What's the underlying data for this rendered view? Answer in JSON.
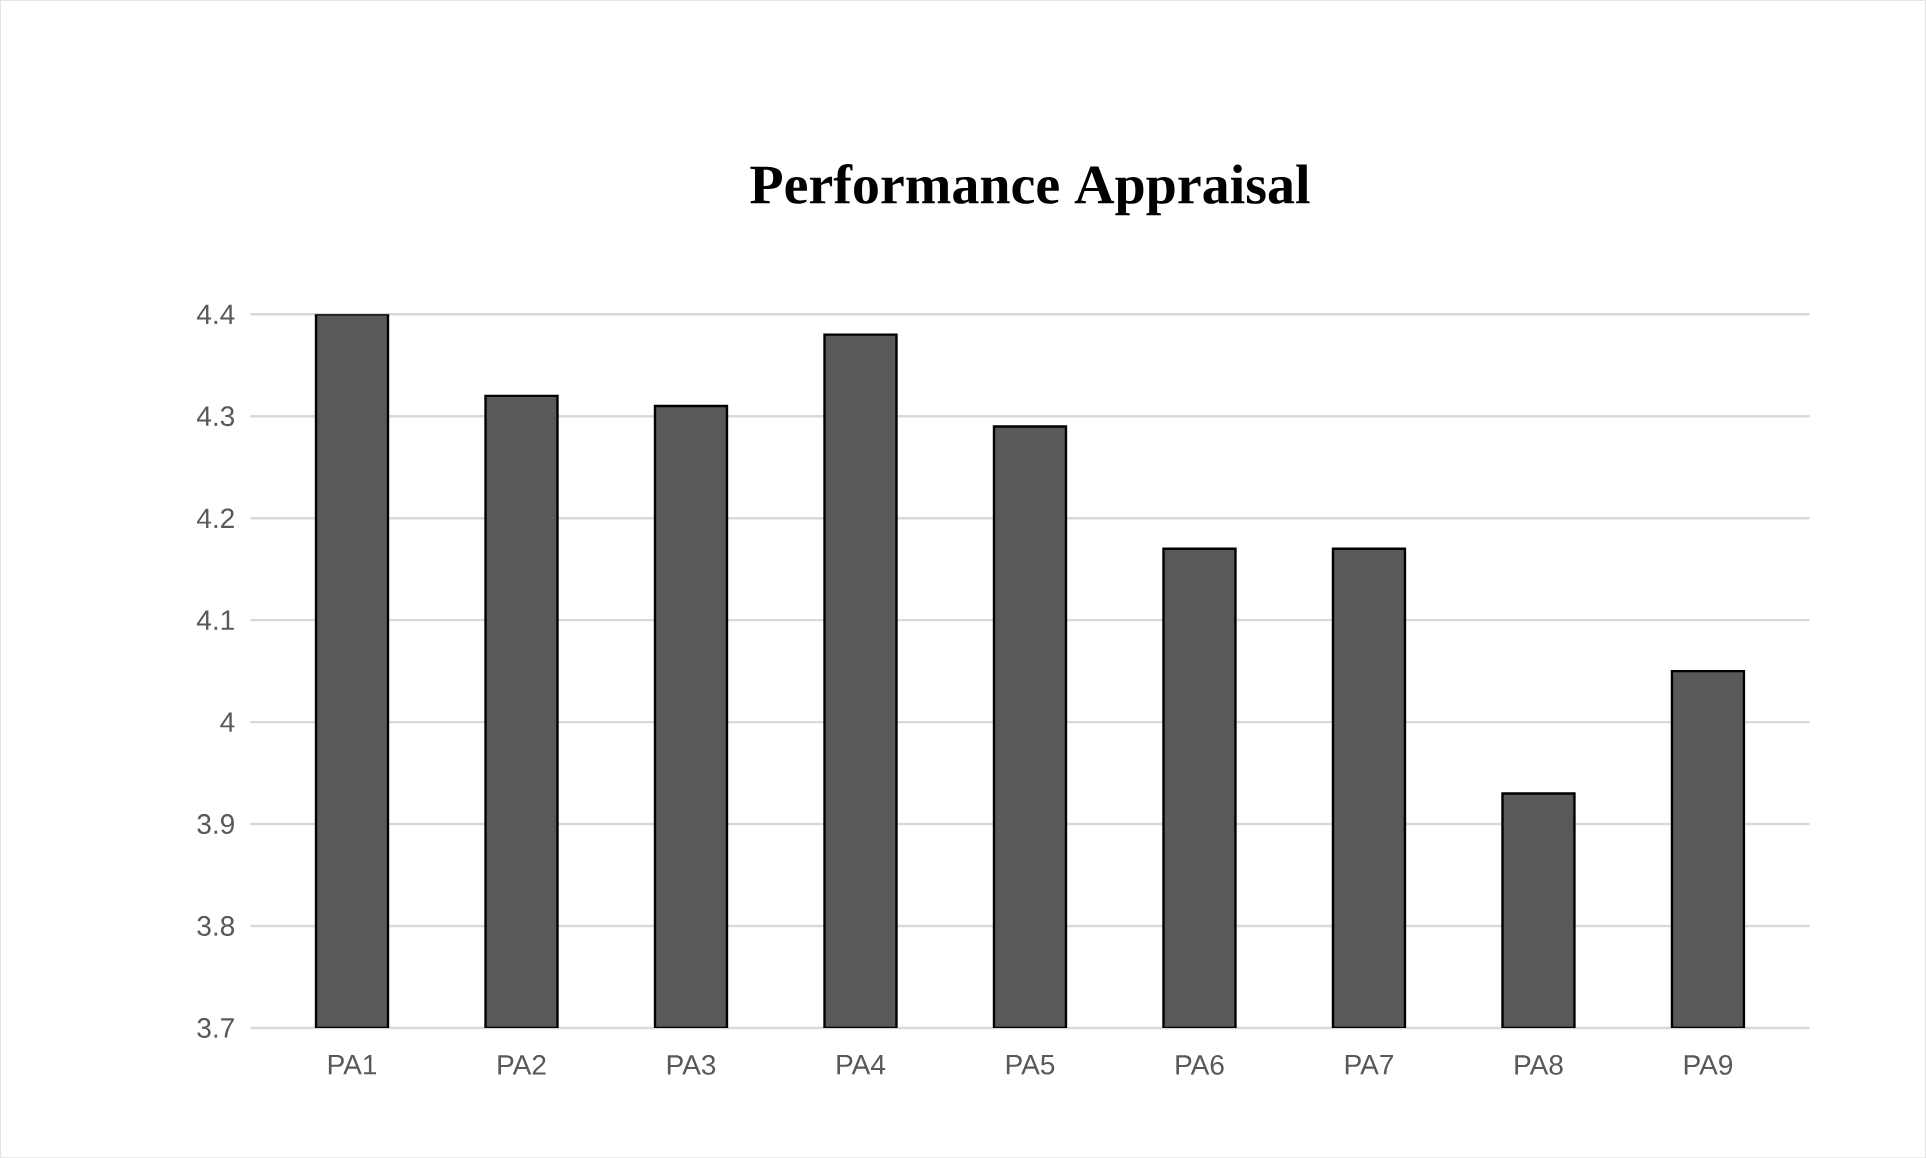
{
  "chart_data": {
    "type": "bar",
    "title": "Performance Appraisal",
    "categories": [
      "PA1",
      "PA2",
      "PA3",
      "PA4",
      "PA5",
      "PA6",
      "PA7",
      "PA8",
      "PA9"
    ],
    "values": [
      4.4,
      4.32,
      4.31,
      4.38,
      4.29,
      4.17,
      4.17,
      3.93,
      4.05
    ],
    "color": "#595959",
    "ylim": [
      3.7,
      4.4
    ],
    "yticks": [
      3.7,
      3.8,
      3.9,
      4,
      4.1,
      4.2,
      4.3,
      4.4
    ],
    "grid": true
  }
}
